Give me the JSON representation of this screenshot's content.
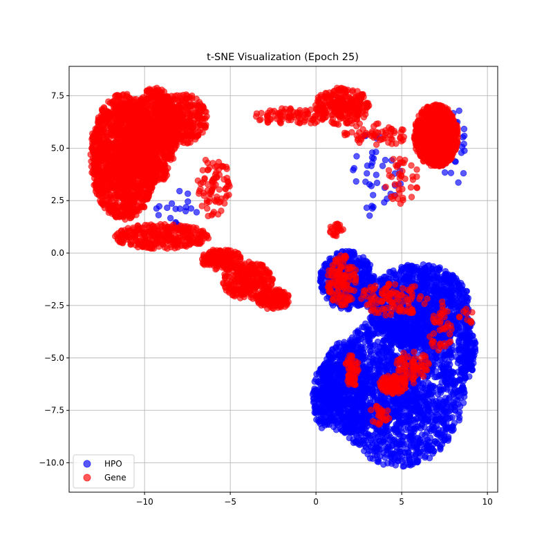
{
  "chart_data": {
    "type": "scatter",
    "title": "t-SNE Visualization (Epoch 25)",
    "xlabel": "",
    "ylabel": "",
    "xlim": [
      -14.4,
      10.6
    ],
    "ylim": [
      -11.4,
      8.9
    ],
    "xticks": [
      -10,
      -5,
      0,
      5,
      10
    ],
    "xtick_labels": [
      "−10",
      "−5",
      "0",
      "5",
      "10"
    ],
    "yticks": [
      -10.0,
      -7.5,
      -5.0,
      -2.5,
      0.0,
      2.5,
      5.0,
      7.5
    ],
    "ytick_labels": [
      "−10.0",
      "−7.5",
      "−5.0",
      "−2.5",
      "0.0",
      "2.5",
      "5.0",
      "7.5"
    ],
    "grid": true,
    "legend_position": "lower-left",
    "marker_alpha": 0.65,
    "series": [
      {
        "name": "HPO",
        "color": "#0000ff",
        "clusters": [
          {
            "cx": 4.9,
            "cy": -6.5,
            "rx": 3.8,
            "ry": 3.7,
            "n": 1800
          },
          {
            "cx": 1.7,
            "cy": -6.4,
            "rx": 1.4,
            "ry": 2.2,
            "n": 450
          },
          {
            "cx": 0.5,
            "cy": -6.8,
            "rx": 0.7,
            "ry": 1.6,
            "n": 200
          },
          {
            "cx": 6.0,
            "cy": -2.5,
            "rx": 3.0,
            "ry": 2.0,
            "n": 1100
          },
          {
            "cx": 1.8,
            "cy": -1.3,
            "rx": 1.6,
            "ry": 1.4,
            "n": 500
          },
          {
            "cx": 8.8,
            "cy": -4.5,
            "rx": 0.5,
            "ry": 1.5,
            "n": 150
          },
          {
            "cx": 3.5,
            "cy": 3.8,
            "rx": 1.5,
            "ry": 2.2,
            "n": 40
          },
          {
            "cx": -8.0,
            "cy": 2.0,
            "rx": 1.5,
            "ry": 1.0,
            "n": 20
          },
          {
            "cx": 8.0,
            "cy": 5.0,
            "rx": 1.0,
            "ry": 2.0,
            "n": 30
          }
        ]
      },
      {
        "name": "Gene",
        "color": "#ff0000",
        "clusters": [
          {
            "cx": -11.2,
            "cy": 4.6,
            "rx": 2.0,
            "ry": 3.0,
            "n": 1500
          },
          {
            "cx": -9.4,
            "cy": 5.6,
            "rx": 1.3,
            "ry": 2.3,
            "n": 700
          },
          {
            "cx": -7.8,
            "cy": 6.4,
            "rx": 1.5,
            "ry": 1.2,
            "n": 300
          },
          {
            "cx": -9.0,
            "cy": 0.8,
            "rx": 2.8,
            "ry": 0.6,
            "n": 300
          },
          {
            "cx": -6.0,
            "cy": 3.2,
            "rx": 1.0,
            "ry": 1.5,
            "n": 80
          },
          {
            "cx": -4.0,
            "cy": -1.3,
            "rx": 1.5,
            "ry": 0.9,
            "n": 250
          },
          {
            "cx": -5.5,
            "cy": -0.3,
            "rx": 1.2,
            "ry": 0.5,
            "n": 150
          },
          {
            "cx": -2.5,
            "cy": -2.2,
            "rx": 1.0,
            "ry": 0.5,
            "n": 150
          },
          {
            "cx": 1.5,
            "cy": 7.0,
            "rx": 1.6,
            "ry": 0.9,
            "n": 250
          },
          {
            "cx": 7.0,
            "cy": 5.6,
            "rx": 1.3,
            "ry": 1.5,
            "n": 900
          },
          {
            "cx": -1.5,
            "cy": 6.5,
            "rx": 2.2,
            "ry": 0.4,
            "n": 80
          },
          {
            "cx": 3.6,
            "cy": 5.7,
            "rx": 2.0,
            "ry": 0.6,
            "n": 60
          },
          {
            "cx": 5.0,
            "cy": 3.5,
            "rx": 1.0,
            "ry": 1.2,
            "n": 40
          },
          {
            "cx": 1.5,
            "cy": -1.3,
            "rx": 0.9,
            "ry": 1.2,
            "n": 120
          },
          {
            "cx": 4.5,
            "cy": -2.2,
            "rx": 2.0,
            "ry": 0.8,
            "n": 100
          },
          {
            "cx": 4.5,
            "cy": -6.3,
            "rx": 0.8,
            "ry": 0.5,
            "n": 90
          },
          {
            "cx": 5.6,
            "cy": -5.4,
            "rx": 1.0,
            "ry": 0.8,
            "n": 70
          },
          {
            "cx": 2.1,
            "cy": -5.6,
            "rx": 0.4,
            "ry": 0.8,
            "n": 50
          },
          {
            "cx": 3.7,
            "cy": -7.7,
            "rx": 0.6,
            "ry": 0.5,
            "n": 25
          },
          {
            "cx": 1.2,
            "cy": 1.1,
            "rx": 0.4,
            "ry": 0.3,
            "n": 25
          },
          {
            "cx": 7.3,
            "cy": -3.5,
            "rx": 0.8,
            "ry": 1.2,
            "n": 40
          },
          {
            "cx": 8.8,
            "cy": -3.0,
            "rx": 0.5,
            "ry": 0.4,
            "n": 10
          }
        ]
      }
    ]
  }
}
